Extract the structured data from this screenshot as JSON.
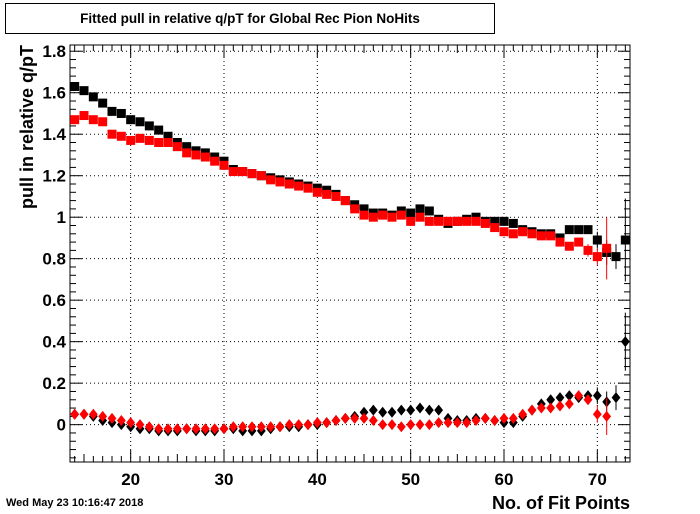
{
  "chart_data": {
    "type": "scatter",
    "title": "Fitted pull in relative q/pT for Global Rec Pion NoHits",
    "xlabel": "No. of Fit Points",
    "ylabel": "pull in relative q/pT",
    "xlim": [
      13.5,
      73.5
    ],
    "ylim": [
      -0.18,
      1.83
    ],
    "x_ticks": [
      20,
      30,
      40,
      50,
      60,
      70
    ],
    "y_ticks": [
      0,
      0.2,
      0.4,
      0.6,
      0.8,
      1,
      1.2,
      1.4,
      1.6,
      1.8
    ],
    "y_tick_labels": [
      "0",
      "0.2",
      "0.4",
      "0.6",
      "0.8",
      "1",
      "1.2",
      "1.4",
      "1.6",
      "1.8"
    ],
    "grid": true,
    "series": [
      {
        "marker": "square",
        "color": "#000000",
        "x": [
          14,
          15,
          16,
          17,
          18,
          19,
          20,
          21,
          22,
          23,
          24,
          25,
          26,
          27,
          28,
          29,
          30,
          31,
          32,
          33,
          34,
          35,
          36,
          37,
          38,
          39,
          40,
          41,
          42,
          43,
          44,
          45,
          46,
          47,
          48,
          49,
          50,
          51,
          52,
          53,
          54,
          55,
          56,
          57,
          58,
          59,
          60,
          61,
          62,
          63,
          64,
          65,
          66,
          67,
          68,
          69,
          70,
          71,
          72,
          73
        ],
        "y": [
          1.63,
          1.61,
          1.58,
          1.55,
          1.51,
          1.5,
          1.47,
          1.46,
          1.44,
          1.42,
          1.39,
          1.36,
          1.34,
          1.32,
          1.31,
          1.29,
          1.27,
          1.23,
          1.22,
          1.21,
          1.2,
          1.19,
          1.18,
          1.17,
          1.16,
          1.15,
          1.14,
          1.13,
          1.11,
          1.08,
          1.06,
          1.04,
          1.02,
          1.02,
          1.01,
          1.03,
          1.02,
          1.04,
          1.03,
          0.99,
          0.97,
          0.98,
          0.99,
          1.0,
          0.98,
          0.98,
          0.98,
          0.97,
          0.94,
          0.93,
          0.92,
          0.92,
          0.9,
          0.94,
          0.94,
          0.94,
          0.89,
          0.83,
          0.81,
          0.89
        ],
        "y_err": [
          0,
          0,
          0,
          0,
          0,
          0,
          0,
          0,
          0,
          0,
          0,
          0,
          0,
          0,
          0,
          0,
          0,
          0,
          0,
          0,
          0,
          0,
          0,
          0,
          0,
          0,
          0,
          0,
          0,
          0,
          0,
          0,
          0,
          0,
          0,
          0,
          0,
          0,
          0,
          0,
          0,
          0,
          0,
          0,
          0,
          0,
          0,
          0,
          0,
          0,
          0,
          0,
          0,
          0,
          0,
          0,
          0.04,
          0.06,
          0.06,
          0.2
        ]
      },
      {
        "marker": "square",
        "color": "#ff0000",
        "x": [
          14,
          15,
          16,
          17,
          18,
          19,
          20,
          21,
          22,
          23,
          24,
          25,
          26,
          27,
          28,
          29,
          30,
          31,
          32,
          33,
          34,
          35,
          36,
          37,
          38,
          39,
          40,
          41,
          42,
          43,
          44,
          45,
          46,
          47,
          48,
          49,
          50,
          51,
          52,
          53,
          54,
          55,
          56,
          57,
          58,
          59,
          60,
          61,
          62,
          63,
          64,
          65,
          66,
          67,
          68,
          69,
          70,
          71
        ],
        "y": [
          1.47,
          1.49,
          1.47,
          1.46,
          1.4,
          1.39,
          1.37,
          1.38,
          1.37,
          1.36,
          1.36,
          1.34,
          1.31,
          1.3,
          1.29,
          1.27,
          1.25,
          1.22,
          1.22,
          1.21,
          1.2,
          1.18,
          1.17,
          1.16,
          1.15,
          1.14,
          1.12,
          1.11,
          1.1,
          1.08,
          1.04,
          1.01,
          1.0,
          1.01,
          1.0,
          1.01,
          0.98,
          1.0,
          0.98,
          0.98,
          0.98,
          0.98,
          0.98,
          0.98,
          0.97,
          0.95,
          0.93,
          0.92,
          0.93,
          0.92,
          0.91,
          0.91,
          0.88,
          0.86,
          0.88,
          0.84,
          0.81,
          0.85
        ],
        "y_err": [
          0,
          0,
          0,
          0,
          0,
          0,
          0,
          0,
          0,
          0,
          0,
          0,
          0,
          0,
          0,
          0,
          0,
          0,
          0,
          0,
          0,
          0,
          0,
          0,
          0,
          0,
          0,
          0,
          0,
          0,
          0,
          0,
          0,
          0,
          0,
          0,
          0,
          0,
          0,
          0,
          0,
          0,
          0,
          0,
          0,
          0,
          0,
          0,
          0,
          0,
          0,
          0,
          0,
          0,
          0,
          0.03,
          0.04,
          0.15
        ]
      },
      {
        "marker": "diamond",
        "color": "#000000",
        "x": [
          14,
          15,
          16,
          17,
          18,
          19,
          20,
          21,
          22,
          23,
          24,
          25,
          26,
          27,
          28,
          29,
          30,
          31,
          32,
          33,
          34,
          35,
          36,
          37,
          38,
          39,
          40,
          41,
          42,
          43,
          44,
          45,
          46,
          47,
          48,
          49,
          50,
          51,
          52,
          53,
          54,
          55,
          56,
          57,
          58,
          59,
          60,
          61,
          62,
          63,
          64,
          65,
          66,
          67,
          68,
          69,
          70,
          71,
          72,
          73
        ],
        "y": [
          0.05,
          0.05,
          0.04,
          0.02,
          0.01,
          0.0,
          -0.01,
          -0.02,
          -0.02,
          -0.03,
          -0.03,
          -0.03,
          -0.02,
          -0.03,
          -0.03,
          -0.03,
          -0.02,
          -0.02,
          -0.03,
          -0.03,
          -0.03,
          -0.02,
          -0.01,
          -0.01,
          -0.01,
          0.0,
          0.0,
          0.01,
          0.02,
          0.03,
          0.04,
          0.06,
          0.07,
          0.06,
          0.06,
          0.07,
          0.07,
          0.08,
          0.07,
          0.07,
          0.03,
          0.02,
          0.02,
          0.03,
          0.03,
          0.02,
          0.01,
          0.01,
          0.04,
          0.07,
          0.1,
          0.12,
          0.13,
          0.14,
          0.13,
          0.14,
          0.14,
          0.11,
          0.13,
          0.4
        ],
        "y_err": [
          0,
          0,
          0,
          0,
          0,
          0,
          0,
          0,
          0,
          0,
          0,
          0,
          0,
          0,
          0,
          0,
          0,
          0,
          0,
          0,
          0,
          0,
          0,
          0,
          0,
          0,
          0,
          0,
          0,
          0,
          0,
          0,
          0,
          0,
          0,
          0,
          0,
          0,
          0,
          0,
          0,
          0,
          0,
          0,
          0,
          0,
          0,
          0,
          0,
          0,
          0,
          0,
          0,
          0,
          0,
          0,
          0.04,
          0.05,
          0.06,
          0.14
        ]
      },
      {
        "marker": "diamond",
        "color": "#ff0000",
        "x": [
          14,
          15,
          16,
          17,
          18,
          19,
          20,
          21,
          22,
          23,
          24,
          25,
          26,
          27,
          28,
          29,
          30,
          31,
          32,
          33,
          34,
          35,
          36,
          37,
          38,
          39,
          40,
          41,
          42,
          43,
          44,
          45,
          46,
          47,
          48,
          49,
          50,
          51,
          52,
          53,
          54,
          55,
          56,
          57,
          58,
          59,
          60,
          61,
          62,
          63,
          64,
          65,
          66,
          67,
          68,
          69,
          70,
          71
        ],
        "y": [
          0.05,
          0.05,
          0.05,
          0.04,
          0.03,
          0.02,
          0.01,
          0.0,
          -0.01,
          -0.02,
          -0.02,
          -0.02,
          -0.02,
          -0.02,
          -0.02,
          -0.02,
          -0.02,
          -0.01,
          -0.01,
          -0.01,
          -0.01,
          -0.01,
          -0.01,
          0.0,
          0.0,
          0.0,
          0.01,
          0.01,
          0.02,
          0.03,
          0.03,
          0.03,
          0.02,
          0.0,
          0.0,
          -0.01,
          0.0,
          0.0,
          0.0,
          0.01,
          0.01,
          0.01,
          0.01,
          0.02,
          0.03,
          0.02,
          0.03,
          0.03,
          0.05,
          0.07,
          0.08,
          0.08,
          0.09,
          0.1,
          0.14,
          0.12,
          0.05,
          0.04
        ],
        "y_err": [
          0,
          0,
          0,
          0,
          0,
          0,
          0,
          0,
          0,
          0,
          0,
          0,
          0,
          0,
          0,
          0,
          0,
          0,
          0,
          0,
          0,
          0,
          0,
          0,
          0,
          0,
          0,
          0,
          0,
          0,
          0,
          0,
          0,
          0,
          0,
          0,
          0,
          0,
          0,
          0,
          0,
          0,
          0,
          0,
          0,
          0,
          0,
          0,
          0,
          0,
          0,
          0,
          0,
          0,
          0,
          0.02,
          0.04,
          0.09
        ]
      }
    ]
  },
  "footer": {
    "timestamp": "Wed May 23 10:16:47 2018"
  }
}
